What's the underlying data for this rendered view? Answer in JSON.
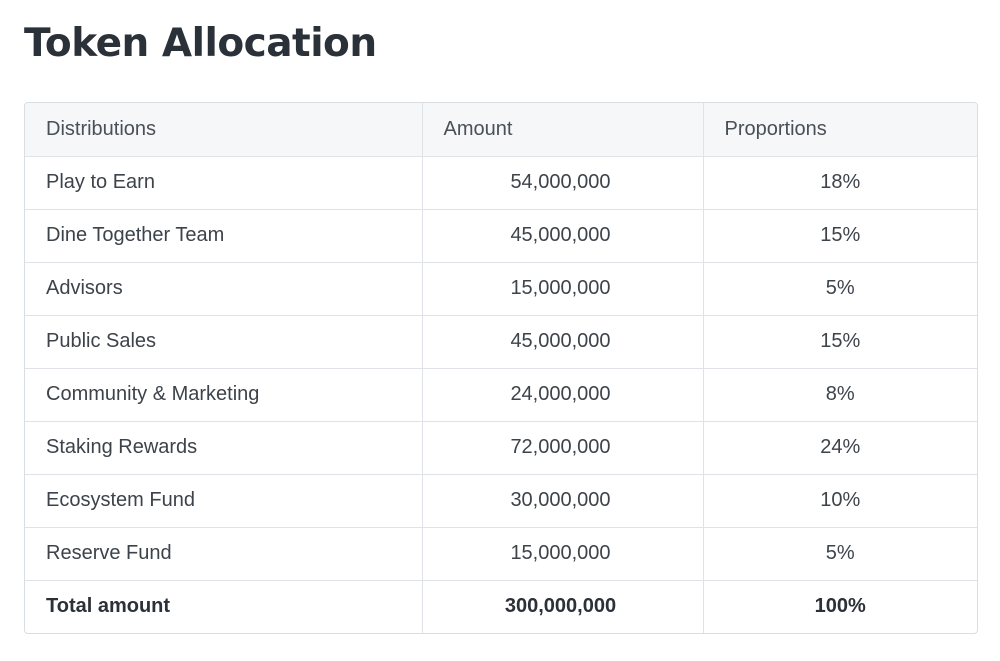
{
  "title": "Token Allocation",
  "table": {
    "headers": [
      "Distributions",
      "Amount",
      "Proportions"
    ],
    "rows": [
      {
        "distribution": "Play to Earn",
        "amount": "54,000,000",
        "proportion": "18%"
      },
      {
        "distribution": "Dine Together Team",
        "amount": "45,000,000",
        "proportion": "15%"
      },
      {
        "distribution": "Advisors",
        "amount": "15,000,000",
        "proportion": "5%"
      },
      {
        "distribution": "Public Sales",
        "amount": "45,000,000",
        "proportion": "15%"
      },
      {
        "distribution": "Community & Marketing",
        "amount": "24,000,000",
        "proportion": "8%"
      },
      {
        "distribution": "Staking Rewards",
        "amount": "72,000,000",
        "proportion": "24%"
      },
      {
        "distribution": "Ecosystem Fund",
        "amount": "30,000,000",
        "proportion": "10%"
      },
      {
        "distribution": "Reserve Fund",
        "amount": "15,000,000",
        "proportion": "5%"
      }
    ],
    "total": {
      "label": "Total amount",
      "amount": "300,000,000",
      "proportion": "100%"
    }
  }
}
